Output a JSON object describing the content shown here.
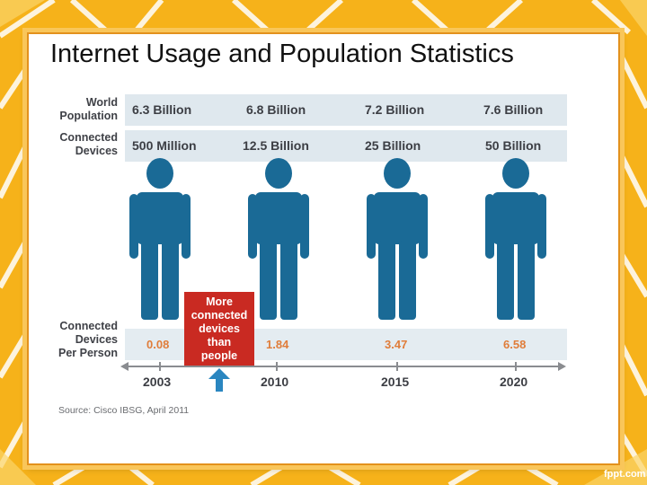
{
  "slide": {
    "title": "Internet Usage and Population Statistics"
  },
  "rows": {
    "world_population_label": "World\nPopulation",
    "connected_devices_label": "Connected\nDevices",
    "per_person_label": "Connected\nDevices\nPer Person"
  },
  "columns": [
    {
      "year": "2003",
      "population": "6.3 Billion",
      "devices": "500 Million",
      "per_person": "0.08"
    },
    {
      "year": "2010",
      "population": "6.8 Billion",
      "devices": "12.5 Billion",
      "per_person": "1.84"
    },
    {
      "year": "2015",
      "population": "7.2 Billion",
      "devices": "25 Billion",
      "per_person": "3.47"
    },
    {
      "year": "2020",
      "population": "7.6 Billion",
      "devices": "50 Billion",
      "per_person": "6.58"
    }
  ],
  "callout": {
    "text": "More\nconnected\ndevices\nthan\npeople"
  },
  "source": "Source: Cisco IBSG, April 2011",
  "brand": "fppt.com",
  "colors": {
    "person": "#1a6a96",
    "accent": "#c92a22",
    "per_person_value": "#e07d3a",
    "band": "#dfe8ee"
  },
  "icons": {
    "person": "person-icon",
    "pointer": "up-arrow-icon"
  }
}
